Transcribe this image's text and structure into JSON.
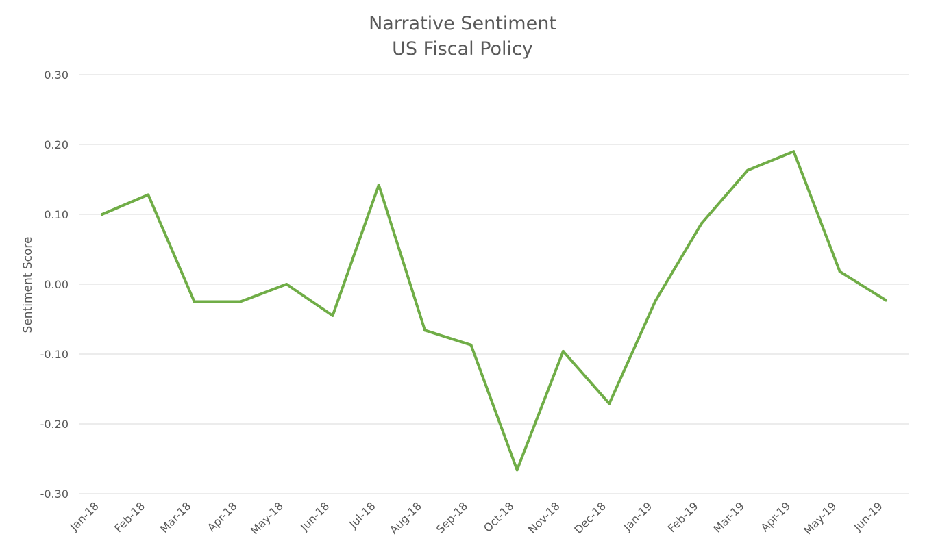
{
  "chart_data": {
    "type": "line",
    "title": "Narrative Sentiment",
    "subtitle": "US Fiscal Policy",
    "xlabel": "",
    "ylabel": "Sentiment Score",
    "ylim": [
      -0.3,
      0.3
    ],
    "yticks": [
      "0.30",
      "0.20",
      "0.10",
      "0.00",
      "-0.10",
      "-0.20",
      "-0.30"
    ],
    "ytick_values": [
      0.3,
      0.2,
      0.1,
      0.0,
      -0.1,
      -0.2,
      -0.3
    ],
    "grid": true,
    "legend": "none",
    "categories": [
      "Jan-18",
      "Feb-18",
      "Mar-18",
      "Apr-18",
      "May-18",
      "Jun-18",
      "Jul-18",
      "Aug-18",
      "Sep-18",
      "Oct-18",
      "Nov-18",
      "Dec-18",
      "Jan-19",
      "Feb-19",
      "Mar-19",
      "Apr-19",
      "May-19",
      "Jun-19"
    ],
    "series": [
      {
        "color": "#70ad47",
        "values": [
          0.1,
          0.128,
          -0.025,
          -0.025,
          0.0,
          -0.045,
          0.142,
          -0.066,
          -0.087,
          -0.266,
          -0.096,
          -0.171,
          -0.024,
          0.087,
          0.163,
          0.19,
          0.018,
          -0.023
        ]
      }
    ]
  }
}
